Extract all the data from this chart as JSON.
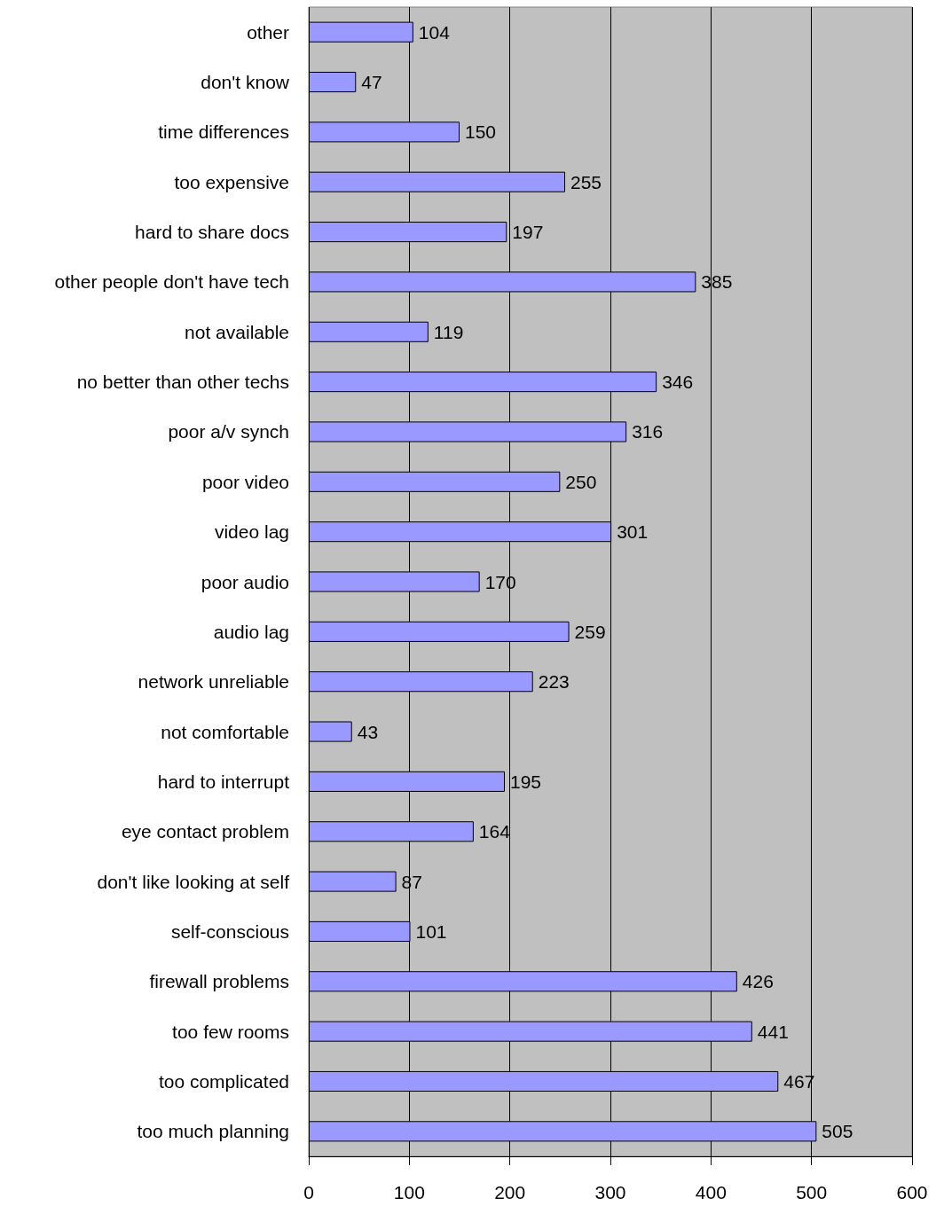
{
  "chart_data": {
    "type": "bar",
    "orientation": "horizontal",
    "categories": [
      "other",
      "don't know",
      "time differences",
      "too expensive",
      "hard to share docs",
      "other people don't have tech",
      "not available",
      "no better than other techs",
      "poor a/v synch",
      "poor video",
      "video lag",
      "poor audio",
      "audio lag",
      "network unreliable",
      "not comfortable",
      "hard to interrupt",
      "eye contact problem",
      "don't like looking at self",
      "self-conscious",
      "firewall problems",
      "too few rooms",
      "too complicated",
      "too much planning"
    ],
    "values": [
      104,
      47,
      150,
      255,
      197,
      385,
      119,
      346,
      316,
      250,
      301,
      170,
      259,
      223,
      43,
      195,
      164,
      87,
      101,
      426,
      441,
      467,
      505
    ],
    "color": "#9999ff",
    "xlim": [
      0,
      600
    ],
    "xticks": [
      0,
      100,
      200,
      300,
      400,
      500,
      600
    ],
    "grid": "x",
    "data_labels": true
  }
}
